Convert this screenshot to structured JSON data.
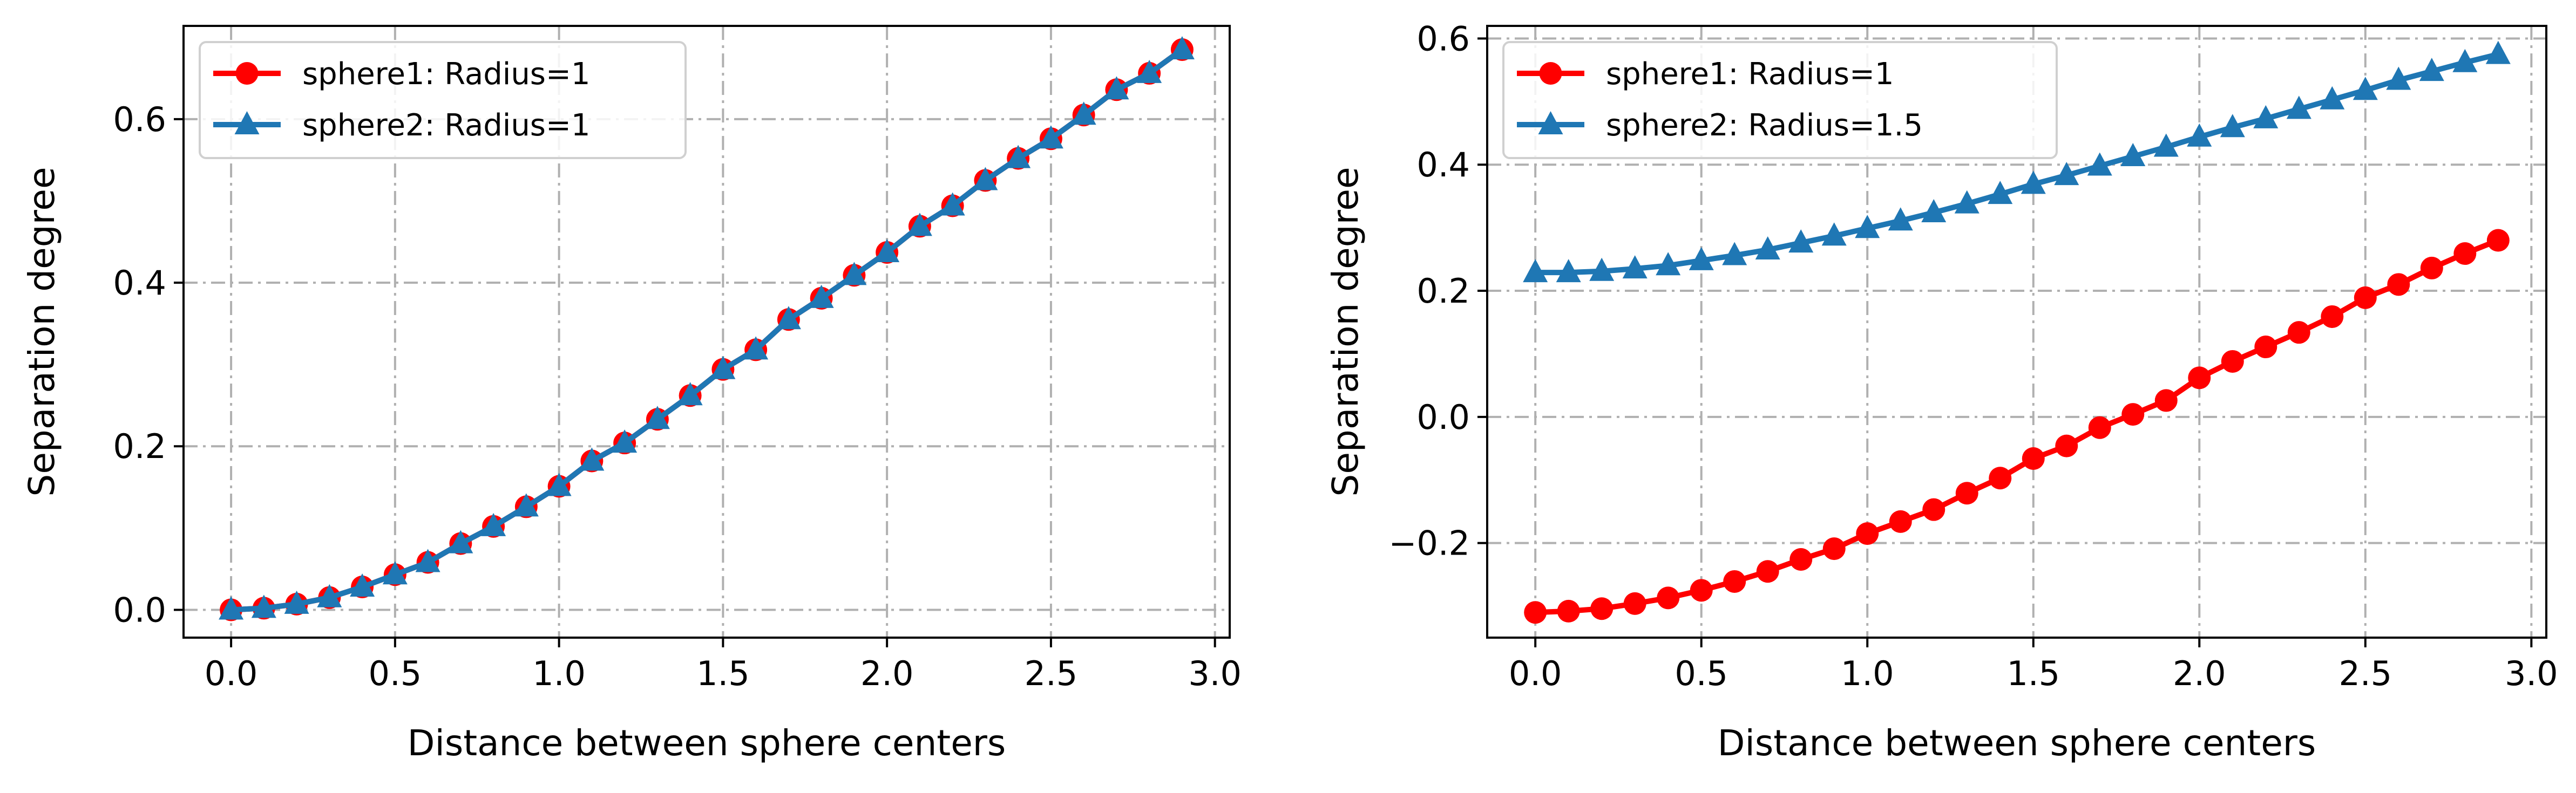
{
  "chart_data": [
    {
      "type": "line",
      "title": "",
      "xlabel": "Distance between sphere centers",
      "ylabel": "Separation degree",
      "xlim": [
        -0.145,
        3.045
      ],
      "ylim": [
        -0.034,
        0.714
      ],
      "xticks": [
        0.0,
        0.5,
        1.0,
        1.5,
        2.0,
        2.5,
        3.0
      ],
      "xtick_labels": [
        "0.0",
        "0.5",
        "1.0",
        "1.5",
        "2.0",
        "2.5",
        "3.0"
      ],
      "yticks": [
        0.0,
        0.2,
        0.4,
        0.6
      ],
      "ytick_labels": [
        "0.0",
        "0.2",
        "0.4",
        "0.6"
      ],
      "grid": true,
      "legend_position": "top-left",
      "x": [
        0.0,
        0.1,
        0.2,
        0.3,
        0.4,
        0.5,
        0.6,
        0.7,
        0.8,
        0.9,
        1.0,
        1.1,
        1.2,
        1.3,
        1.4,
        1.5,
        1.6,
        1.7,
        1.8,
        1.9,
        2.0,
        2.1,
        2.2,
        2.3,
        2.4,
        2.5,
        2.6,
        2.7,
        2.8,
        2.9
      ],
      "series": [
        {
          "name": "sphere1: Radius=1",
          "color": "#ff0000",
          "marker": "circle",
          "values": [
            0.0,
            0.002,
            0.007,
            0.015,
            0.028,
            0.043,
            0.058,
            0.081,
            0.102,
            0.126,
            0.151,
            0.182,
            0.204,
            0.233,
            0.262,
            0.294,
            0.318,
            0.355,
            0.381,
            0.409,
            0.437,
            0.469,
            0.494,
            0.525,
            0.552,
            0.576,
            0.605,
            0.636,
            0.656,
            0.685
          ]
        },
        {
          "name": "sphere2: Radius=1",
          "color": "#1f77b4",
          "marker": "triangle",
          "values": [
            0.0,
            0.002,
            0.007,
            0.015,
            0.028,
            0.043,
            0.058,
            0.081,
            0.102,
            0.126,
            0.151,
            0.182,
            0.204,
            0.233,
            0.262,
            0.294,
            0.318,
            0.355,
            0.381,
            0.409,
            0.437,
            0.469,
            0.494,
            0.525,
            0.552,
            0.576,
            0.605,
            0.636,
            0.656,
            0.685
          ]
        }
      ]
    },
    {
      "type": "line",
      "title": "",
      "xlabel": "Distance between sphere centers",
      "ylabel": "Separation degree",
      "xlim": [
        -0.145,
        3.045
      ],
      "ylim": [
        -0.35,
        0.62
      ],
      "xticks": [
        0.0,
        0.5,
        1.0,
        1.5,
        2.0,
        2.5,
        3.0
      ],
      "xtick_labels": [
        "0.0",
        "0.5",
        "1.0",
        "1.5",
        "2.0",
        "2.5",
        "3.0"
      ],
      "yticks": [
        -0.2,
        0.0,
        0.2,
        0.4,
        0.6
      ],
      "ytick_labels": [
        "−0.2",
        "0.0",
        "0.2",
        "0.4",
        "0.6"
      ],
      "grid": true,
      "legend_position": "top-left",
      "x": [
        0.0,
        0.1,
        0.2,
        0.3,
        0.4,
        0.5,
        0.6,
        0.7,
        0.8,
        0.9,
        1.0,
        1.1,
        1.2,
        1.3,
        1.4,
        1.5,
        1.6,
        1.7,
        1.8,
        1.9,
        2.0,
        2.1,
        2.2,
        2.3,
        2.4,
        2.5,
        2.6,
        2.7,
        2.8,
        2.9
      ],
      "series": [
        {
          "name": "sphere1: Radius=1",
          "color": "#ff0000",
          "marker": "circle",
          "values": [
            -0.31,
            -0.308,
            -0.304,
            -0.296,
            -0.287,
            -0.275,
            -0.261,
            -0.245,
            -0.226,
            -0.209,
            -0.185,
            -0.166,
            -0.147,
            -0.121,
            -0.097,
            -0.066,
            -0.046,
            -0.017,
            0.004,
            0.026,
            0.062,
            0.088,
            0.111,
            0.134,
            0.159,
            0.189,
            0.21,
            0.236,
            0.259,
            0.28
          ]
        },
        {
          "name": "sphere2: Radius=1.5",
          "color": "#1f77b4",
          "marker": "triangle",
          "values": [
            0.229,
            0.229,
            0.231,
            0.235,
            0.24,
            0.248,
            0.256,
            0.265,
            0.276,
            0.287,
            0.299,
            0.311,
            0.324,
            0.338,
            0.353,
            0.369,
            0.383,
            0.398,
            0.413,
            0.428,
            0.444,
            0.459,
            0.473,
            0.488,
            0.503,
            0.518,
            0.534,
            0.548,
            0.562,
            0.575
          ]
        }
      ]
    }
  ]
}
